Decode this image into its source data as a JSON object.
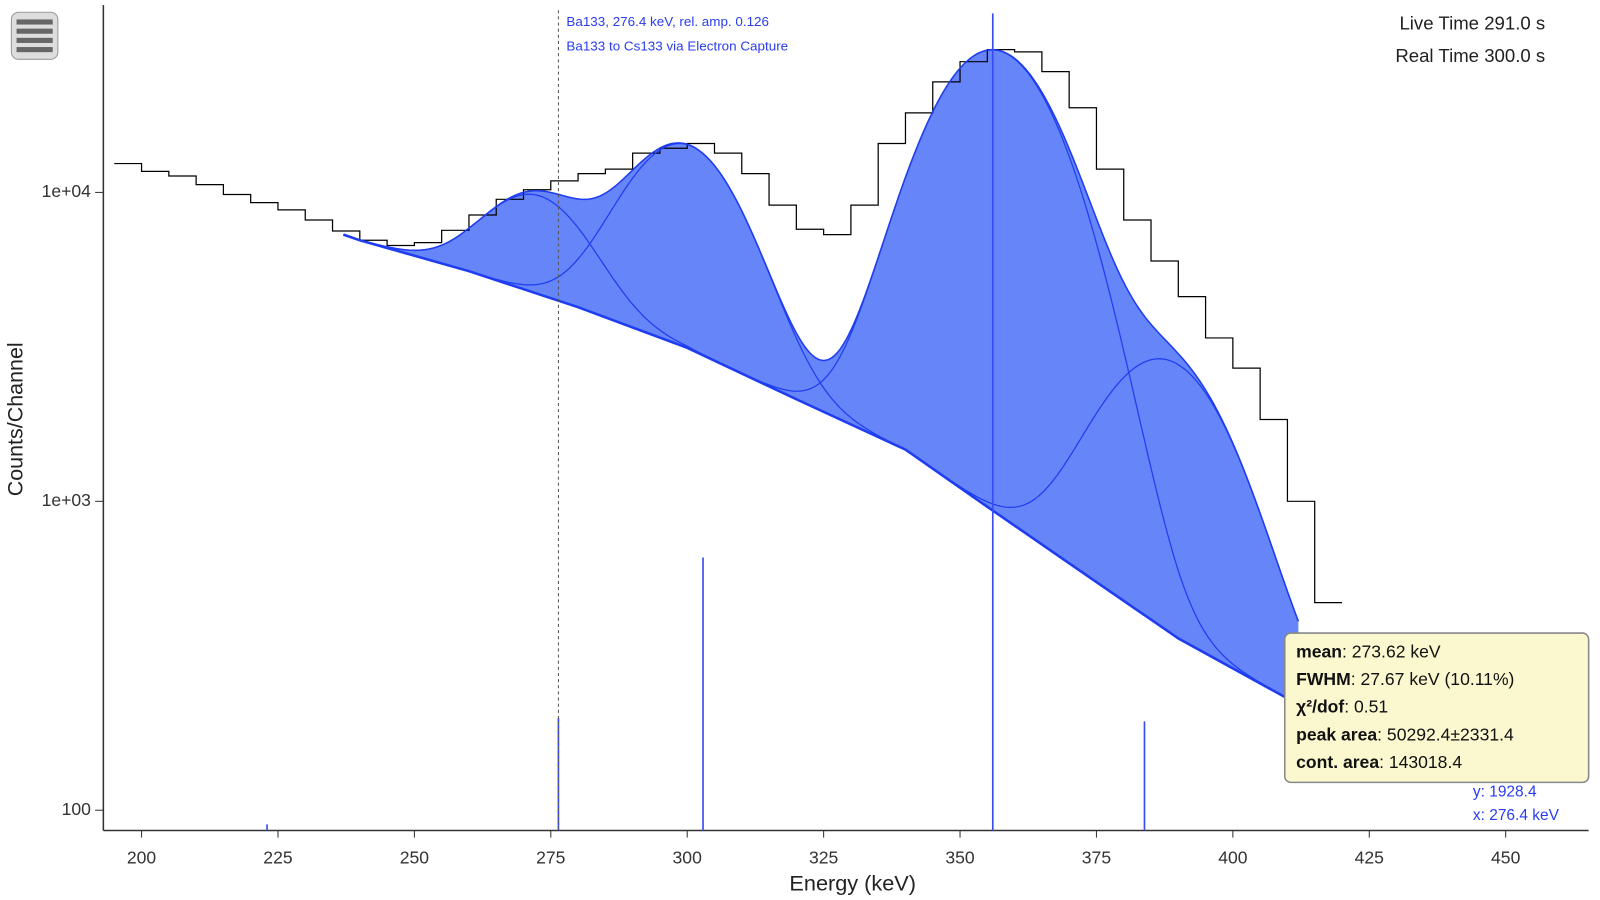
{
  "chart_data": {
    "type": "line",
    "x_label": "Energy (keV)",
    "y_label": "Counts/Channel",
    "log_y": true,
    "xlim": [
      193,
      465.2
    ],
    "xticks": [
      200,
      225,
      250,
      275,
      300,
      325,
      350,
      375,
      400,
      425,
      450
    ],
    "ylim": [
      86,
      40400
    ],
    "yticks": [
      100,
      {
        "value": 1000,
        "label": "1e+03"
      },
      {
        "value": 10000,
        "label": "1e+04"
      }
    ],
    "live_time": "Live Time 291.0 s",
    "real_time": "Real Time 300.0 s",
    "annotation": {
      "x": 276.4,
      "lines": [
        "Ba133, 276.4 keV, rel. amp. 0.126",
        "Ba133 to Cs133 via Electron Capture"
      ]
    },
    "spectrum": {
      "color": "#000000",
      "x": [
        195,
        200,
        205,
        210,
        215,
        220,
        225,
        230,
        235,
        240,
        245,
        250,
        255,
        260,
        265,
        270,
        275,
        280,
        285,
        290,
        295,
        300,
        305,
        310,
        315,
        320,
        325,
        330,
        335,
        340,
        345,
        350,
        355,
        360,
        365,
        370,
        375,
        380,
        385,
        390,
        395,
        400,
        405,
        410,
        415
      ],
      "values": [
        12400,
        11700,
        11300,
        10600,
        9850,
        9270,
        8780,
        8140,
        7500,
        7000,
        6730,
        6880,
        7540,
        8450,
        9500,
        10200,
        10900,
        11500,
        11900,
        13400,
        13900,
        14400,
        13400,
        11500,
        9100,
        7600,
        7300,
        9100,
        14400,
        18100,
        22800,
        26500,
        29000,
        28500,
        24600,
        18800,
        11900,
        8140,
        6000,
        4600,
        3380,
        2700,
        1840,
        1000,
        470
      ]
    },
    "continuum": {
      "color": "#1f3df0",
      "x": [
        237,
        240,
        260,
        280,
        300,
        320,
        340,
        355,
        370,
        390,
        412
      ],
      "values": [
        7300,
        7000,
        5560,
        4250,
        3140,
        2140,
        1470,
        960,
        630,
        360,
        220
      ]
    },
    "fill_color": "#6585f8",
    "peaks": [
      {
        "mean": 272,
        "amplitude": 5100,
        "sigma": 9
      },
      {
        "mean": 299,
        "amplitude": 11200,
        "sigma": 10
      },
      {
        "mean": 356,
        "amplitude": 28000,
        "sigma": 11
      },
      {
        "mean": 387,
        "amplitude": 2500,
        "sigma": 11
      }
    ],
    "reference_lines": {
      "color": "#3a4cf5",
      "x": [
        223,
        276.4,
        302.9,
        356,
        383.8
      ],
      "values": [
        90,
        199,
        658,
        38000,
        194
      ]
    },
    "tooltip": [
      {
        "label": "mean",
        "value": ": 273.62 keV"
      },
      {
        "label": "FWHM",
        "value": ": 27.67 keV (10.11%)"
      },
      {
        "label": "χ²/dof",
        "value": ": 0.51"
      },
      {
        "label": "peak area",
        "value": ": 50292.4±2331.4"
      },
      {
        "label": "cont. area",
        "value": ": 143018.4"
      }
    ],
    "cursor": {
      "y_label": "y: 1928.4",
      "x_label": "x: 276.4 keV"
    }
  }
}
